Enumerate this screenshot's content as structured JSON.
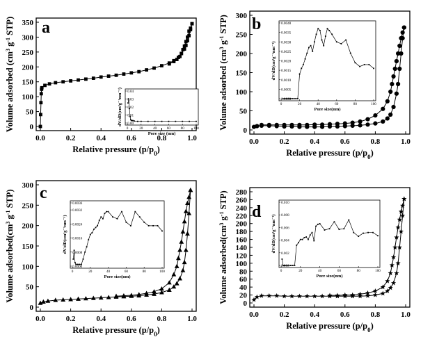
{
  "panels": [
    {
      "label": "a",
      "xlabel": "Relative pressure (p/p",
      "xlabel_sub": "0",
      "xlabel_end": ")",
      "ylabel": "Volume adsorbed (cm",
      "ylabel_sup1": "3",
      "ylabel_mid": " g",
      "ylabel_sup2": "-1",
      "ylabel_end": " STP)",
      "xticks": [
        "0.0",
        "0.2",
        "0.4",
        "0.6",
        "0.8",
        "1.0"
      ],
      "yticks": [
        "0",
        "50",
        "100",
        "150",
        "200",
        "250",
        "300",
        "350"
      ],
      "inset": {
        "xlabel": "Pore size (nm)",
        "ylabel": "dV/dD(cm³g⁻¹nm⁻¹)",
        "xticks": [
          "0",
          "20",
          "40",
          "60",
          "80",
          "100"
        ],
        "yticks": [
          "0.00",
          "0.01",
          "0.02",
          "0.03",
          "0.04"
        ]
      }
    },
    {
      "label": "b",
      "xlabel": "Relative pressure (p/p",
      "xlabel_sub": "0",
      "xlabel_end": ")",
      "ylabel": "Volume adsorbed (cm",
      "ylabel_sup1": "3",
      "ylabel_mid": " g",
      "ylabel_sup2": "-1",
      "ylabel_end": " STP)",
      "xticks": [
        "0.0",
        "0.2",
        "0.4",
        "0.6",
        "0.8",
        "1.0"
      ],
      "yticks": [
        "0",
        "50",
        "100",
        "150",
        "200",
        "250",
        "300"
      ],
      "inset": {
        "xlabel": "Pore size(nm)",
        "ylabel": "dV/dD(cm³g⁻¹nm⁻¹)",
        "xticks": [
          "0",
          "20",
          "40",
          "60",
          "80",
          "100"
        ],
        "yticks": [
          "0.0000",
          "0.0005",
          "0.0010",
          "0.0015",
          "0.0020",
          "0.0025",
          "0.0030",
          "0.0035",
          "0.0040"
        ]
      }
    },
    {
      "label": "c",
      "xlabel": "Relative pressure (p/p",
      "xlabel_sub": "0",
      "xlabel_end": ")",
      "ylabel": "Volume adsorbed(cm",
      "ylabel_sup1": "3",
      "ylabel_mid": " g",
      "ylabel_sup2": "-1",
      "ylabel_end": " STP)",
      "xticks": [
        "0.0",
        "0.2",
        "0.4",
        "0.6",
        "0.8",
        "1.0"
      ],
      "yticks": [
        "0",
        "50",
        "100",
        "150",
        "200",
        "250",
        "300"
      ],
      "inset": {
        "xlabel": "Pore size(nm)",
        "ylabel": "dV/dD(cm³g⁻¹nm⁻¹)",
        "xticks": [
          "0",
          "20",
          "40",
          "60",
          "80",
          "100"
        ],
        "yticks": [
          "0.0000",
          "0.0008",
          "0.0016",
          "0.0024",
          "0.0032",
          "0.0036"
        ]
      }
    },
    {
      "label": "d",
      "xlabel": "Relative pressure (p/p",
      "xlabel_sub": "0",
      "xlabel_end": ")",
      "ylabel": "Volume adsorbed(cm",
      "ylabel_sup1": "3",
      "ylabel_mid": " g",
      "ylabel_sup2": "-1",
      "ylabel_end": " STP)",
      "xticks": [
        "0.0",
        "0.2",
        "0.4",
        "0.6",
        "0.8",
        "1.0"
      ],
      "yticks": [
        "0",
        "20",
        "40",
        "60",
        "80",
        "100",
        "120",
        "140",
        "160",
        "180",
        "200",
        "220",
        "240",
        "260",
        "280"
      ],
      "inset": {
        "xlabel": "Pore size(nm)",
        "ylabel": "dV/dD(cm³g⁻¹nm⁻¹)",
        "xticks": [
          "0",
          "20",
          "40",
          "60",
          "80",
          "100"
        ],
        "yticks": [
          "0.000",
          "0.002",
          "0.004",
          "0.006",
          "0.008",
          "0.010"
        ]
      }
    }
  ],
  "chart_data": [
    {
      "type": "scatter",
      "panel": "a",
      "xlabel": "Relative pressure (p/p0)",
      "ylabel": "Volume adsorbed (cm3 g-1 STP)",
      "xlim": [
        0,
        1.0
      ],
      "ylim": [
        0,
        350
      ],
      "marker": "square",
      "series": [
        {
          "name": "",
          "x": [
            0.0,
            0.002,
            0.004,
            0.006,
            0.008,
            0.01,
            0.03,
            0.06,
            0.1,
            0.15,
            0.2,
            0.25,
            0.3,
            0.35,
            0.4,
            0.45,
            0.5,
            0.55,
            0.6,
            0.65,
            0.7,
            0.75,
            0.8,
            0.85,
            0.88,
            0.91,
            0.93,
            0.95,
            0.96,
            0.97,
            0.98,
            0.99,
            1.0
          ],
          "y": [
            0,
            40,
            80,
            110,
            125,
            130,
            138,
            143,
            147,
            150,
            153,
            156,
            159,
            162,
            166,
            169,
            172,
            176,
            180,
            184,
            190,
            196,
            204,
            213,
            221,
            232,
            245,
            260,
            272,
            288,
            305,
            325,
            345
          ]
        },
        {
          "name": "",
          "x": [
            1.0,
            0.99,
            0.98,
            0.97,
            0.96,
            0.95,
            0.94,
            0.93,
            0.92,
            0.9,
            0.88,
            0.85
          ],
          "y": [
            345,
            330,
            320,
            300,
            285,
            270,
            258,
            245,
            235,
            225,
            218,
            210
          ]
        }
      ],
      "inset": {
        "type": "line",
        "xlabel": "Pore size (nm)",
        "xlim": [
          0,
          100
        ],
        "ylim": [
          0,
          0.04
        ],
        "x": [
          1,
          2,
          3,
          4,
          5,
          6,
          8,
          10,
          15,
          20,
          30,
          40,
          50,
          60,
          70,
          80,
          90,
          100
        ],
        "y": [
          0.025,
          0.03,
          0.018,
          0.008,
          0.004,
          0.003,
          0.003,
          0.0025,
          0.002,
          0.002,
          0.002,
          0.002,
          0.002,
          0.002,
          0.002,
          0.002,
          0.002,
          0.002
        ]
      }
    },
    {
      "type": "scatter",
      "panel": "b",
      "xlabel": "Relative pressure (p/p0)",
      "ylabel": "Volume adsorbed (cm3 g-1 STP)",
      "xlim": [
        0,
        1.0
      ],
      "ylim": [
        0,
        300
      ],
      "marker": "circle",
      "series": [
        {
          "name": "",
          "x": [
            0.0,
            0.02,
            0.05,
            0.1,
            0.15,
            0.2,
            0.25,
            0.3,
            0.35,
            0.4,
            0.45,
            0.5,
            0.55,
            0.6,
            0.65,
            0.7,
            0.75,
            0.8,
            0.85,
            0.88,
            0.9,
            0.92,
            0.94,
            0.95,
            0.96,
            0.97,
            0.98,
            0.99
          ],
          "y": [
            8,
            10,
            11,
            11,
            10,
            9,
            9,
            8,
            8,
            8,
            8,
            9,
            9,
            10,
            11,
            12,
            14,
            17,
            22,
            30,
            40,
            60,
            95,
            120,
            160,
            200,
            240,
            268
          ]
        },
        {
          "name": "",
          "x": [
            0.99,
            0.98,
            0.97,
            0.96,
            0.95,
            0.94,
            0.93,
            0.92,
            0.91,
            0.9,
            0.88,
            0.85,
            0.8,
            0.75,
            0.7,
            0.65,
            0.6,
            0.55,
            0.5,
            0.45,
            0.4,
            0.35,
            0.3,
            0.25,
            0.2,
            0.15,
            0.1,
            0.05
          ],
          "y": [
            268,
            255,
            240,
            220,
            200,
            180,
            160,
            140,
            120,
            100,
            75,
            55,
            38,
            28,
            22,
            19,
            17,
            16,
            15,
            14,
            14,
            13,
            13,
            13,
            13,
            13,
            13,
            13
          ]
        }
      ],
      "inset": {
        "type": "line",
        "xlabel": "Pore size(nm)",
        "xlim": [
          0,
          100
        ],
        "ylim": [
          0,
          0.004
        ],
        "x": [
          2,
          4,
          6,
          8,
          10,
          12,
          14,
          16,
          18,
          20,
          22,
          24,
          26,
          28,
          30,
          32,
          34,
          36,
          38,
          40,
          42,
          44,
          46,
          48,
          50,
          52,
          55,
          60,
          65,
          70,
          75,
          80,
          85,
          90,
          95,
          100
        ],
        "y": [
          0.0,
          0.0,
          0.0,
          0.0,
          0.0,
          0.0,
          0.0,
          0.0,
          0.0,
          0.0013,
          0.0016,
          0.0018,
          0.0021,
          0.0024,
          0.0027,
          0.0028,
          0.0025,
          0.003,
          0.0034,
          0.0037,
          0.0036,
          0.0031,
          0.0028,
          0.0033,
          0.0037,
          0.0036,
          0.0034,
          0.003,
          0.0029,
          0.0031,
          0.0024,
          0.0019,
          0.0017,
          0.0018,
          0.0018,
          0.0016
        ]
      }
    },
    {
      "type": "scatter",
      "panel": "c",
      "xlabel": "Relative pressure (p/p0)",
      "ylabel": "Volume adsorbed(cm3 g-1 STP)",
      "xlim": [
        0,
        1.0
      ],
      "ylim": [
        0,
        300
      ],
      "marker": "triangle",
      "series": [
        {
          "name": "",
          "x": [
            0.0,
            0.02,
            0.05,
            0.1,
            0.15,
            0.2,
            0.25,
            0.3,
            0.35,
            0.4,
            0.45,
            0.5,
            0.55,
            0.6,
            0.65,
            0.7,
            0.75,
            0.8,
            0.85,
            0.88,
            0.9,
            0.92,
            0.94,
            0.95,
            0.96,
            0.97,
            0.98,
            0.99
          ],
          "y": [
            10,
            13,
            15,
            17,
            18,
            19,
            20,
            21,
            22,
            23,
            24,
            25,
            26,
            27,
            28,
            30,
            32,
            36,
            42,
            50,
            58,
            70,
            90,
            110,
            140,
            180,
            230,
            287
          ]
        },
        {
          "name": "",
          "x": [
            0.99,
            0.98,
            0.97,
            0.96,
            0.95,
            0.94,
            0.93,
            0.92,
            0.91,
            0.9,
            0.88,
            0.85,
            0.8,
            0.75,
            0.7,
            0.65,
            0.6,
            0.55,
            0.5
          ],
          "y": [
            287,
            270,
            255,
            235,
            210,
            185,
            160,
            140,
            120,
            100,
            80,
            60,
            45,
            38,
            34,
            31,
            29,
            28,
            27
          ]
        }
      ],
      "inset": {
        "type": "line",
        "xlabel": "Pore size(nm)",
        "xlim": [
          0,
          100
        ],
        "ylim": [
          0,
          0.0036
        ],
        "x": [
          1,
          2,
          3,
          4,
          6,
          8,
          10,
          12,
          14,
          16,
          18,
          20,
          22,
          24,
          26,
          28,
          30,
          32,
          34,
          36,
          38,
          40,
          45,
          50,
          55,
          60,
          65,
          70,
          75,
          80,
          85,
          90,
          95,
          100
        ],
        "y": [
          0.0004,
          0.0009,
          0.0002,
          0.0001,
          0.0001,
          0.0001,
          0.0001,
          0.0004,
          0.0008,
          0.0011,
          0.0015,
          0.0018,
          0.0019,
          0.0021,
          0.0022,
          0.0023,
          0.0026,
          0.0028,
          0.0027,
          0.003,
          0.0031,
          0.0031,
          0.0028,
          0.0027,
          0.0031,
          0.0025,
          0.0023,
          0.0031,
          0.0028,
          0.0025,
          0.0023,
          0.0023,
          0.0023,
          0.002
        ]
      }
    },
    {
      "type": "scatter",
      "panel": "d",
      "xlabel": "Relative pressure (p/p0)",
      "ylabel": "Volume adsorbed(cm3 g-1 STP)",
      "xlim": [
        0,
        1.0
      ],
      "ylim": [
        0,
        280
      ],
      "marker": "star",
      "series": [
        {
          "name": "",
          "x": [
            0.0,
            0.02,
            0.05,
            0.1,
            0.15,
            0.2,
            0.25,
            0.3,
            0.35,
            0.4,
            0.45,
            0.5,
            0.55,
            0.6,
            0.65,
            0.7,
            0.75,
            0.8,
            0.85,
            0.88,
            0.9,
            0.92,
            0.94,
            0.95,
            0.96,
            0.97,
            0.98,
            0.99
          ],
          "y": [
            8,
            15,
            18,
            18,
            18,
            17,
            17,
            17,
            17,
            17,
            17,
            17,
            17,
            17,
            17,
            17,
            18,
            20,
            24,
            30,
            38,
            50,
            75,
            100,
            140,
            180,
            220,
            262
          ]
        },
        {
          "name": "",
          "x": [
            0.99,
            0.98,
            0.97,
            0.96,
            0.95,
            0.94,
            0.93,
            0.92,
            0.91,
            0.9,
            0.88,
            0.85,
            0.8,
            0.75,
            0.7,
            0.65,
            0.6,
            0.55,
            0.5
          ],
          "y": [
            262,
            245,
            230,
            210,
            190,
            165,
            140,
            115,
            95,
            75,
            55,
            40,
            30,
            25,
            22,
            20,
            20,
            19,
            19
          ]
        }
      ],
      "inset": {
        "type": "line",
        "xlabel": "Pore size(nm)",
        "xlim": [
          0,
          100
        ],
        "ylim": [
          0,
          0.01
        ],
        "x": [
          1,
          2,
          3,
          4,
          6,
          8,
          10,
          12,
          14,
          16,
          18,
          20,
          22,
          24,
          26,
          28,
          30,
          32,
          34,
          36,
          38,
          40,
          45,
          50,
          55,
          60,
          65,
          70,
          75,
          80,
          85,
          90,
          95,
          100
        ],
        "y": [
          0.001,
          0.0,
          0.0,
          0.0,
          0.0,
          0.0,
          0.0,
          0.0,
          0.0,
          0.0032,
          0.0036,
          0.0041,
          0.0041,
          0.0044,
          0.0045,
          0.0041,
          0.0048,
          0.0052,
          0.0039,
          0.0062,
          0.0065,
          0.0066,
          0.0056,
          0.0058,
          0.0069,
          0.0057,
          0.0058,
          0.0072,
          0.0052,
          0.0046,
          0.0051,
          0.0052,
          0.0052,
          0.0047
        ]
      }
    }
  ]
}
